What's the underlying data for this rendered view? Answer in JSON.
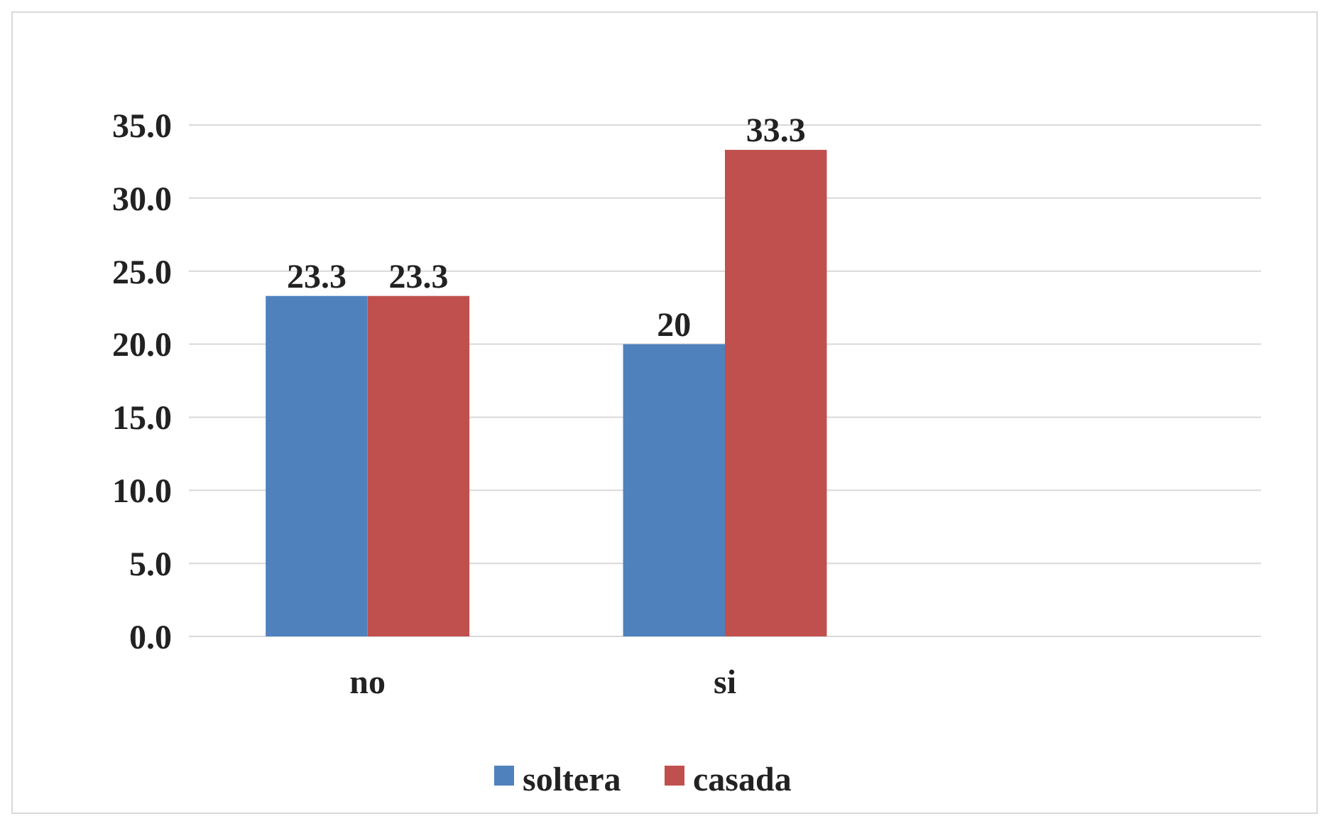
{
  "chart_data": {
    "type": "bar",
    "categories": [
      "no",
      "si",
      null
    ],
    "series": [
      {
        "name": "soltera",
        "color": "#4f81bd",
        "values": [
          23.3,
          20,
          null
        ]
      },
      {
        "name": "casada",
        "color": "#c0504d",
        "values": [
          23.3,
          33.3,
          null
        ]
      }
    ],
    "ylim": [
      0,
      35
    ],
    "yticks": [
      {
        "value": 0,
        "label": "0.0"
      },
      {
        "value": 5,
        "label": "5.0"
      },
      {
        "value": 10,
        "label": "10.0"
      },
      {
        "value": 15,
        "label": "15.0"
      },
      {
        "value": 20,
        "label": "20.0"
      },
      {
        "value": 25,
        "label": "25.0"
      },
      {
        "value": 30,
        "label": "30.0"
      },
      {
        "value": 35,
        "label": "35.0"
      }
    ],
    "grid": "y",
    "legend": "bottom",
    "data_labels": true
  }
}
